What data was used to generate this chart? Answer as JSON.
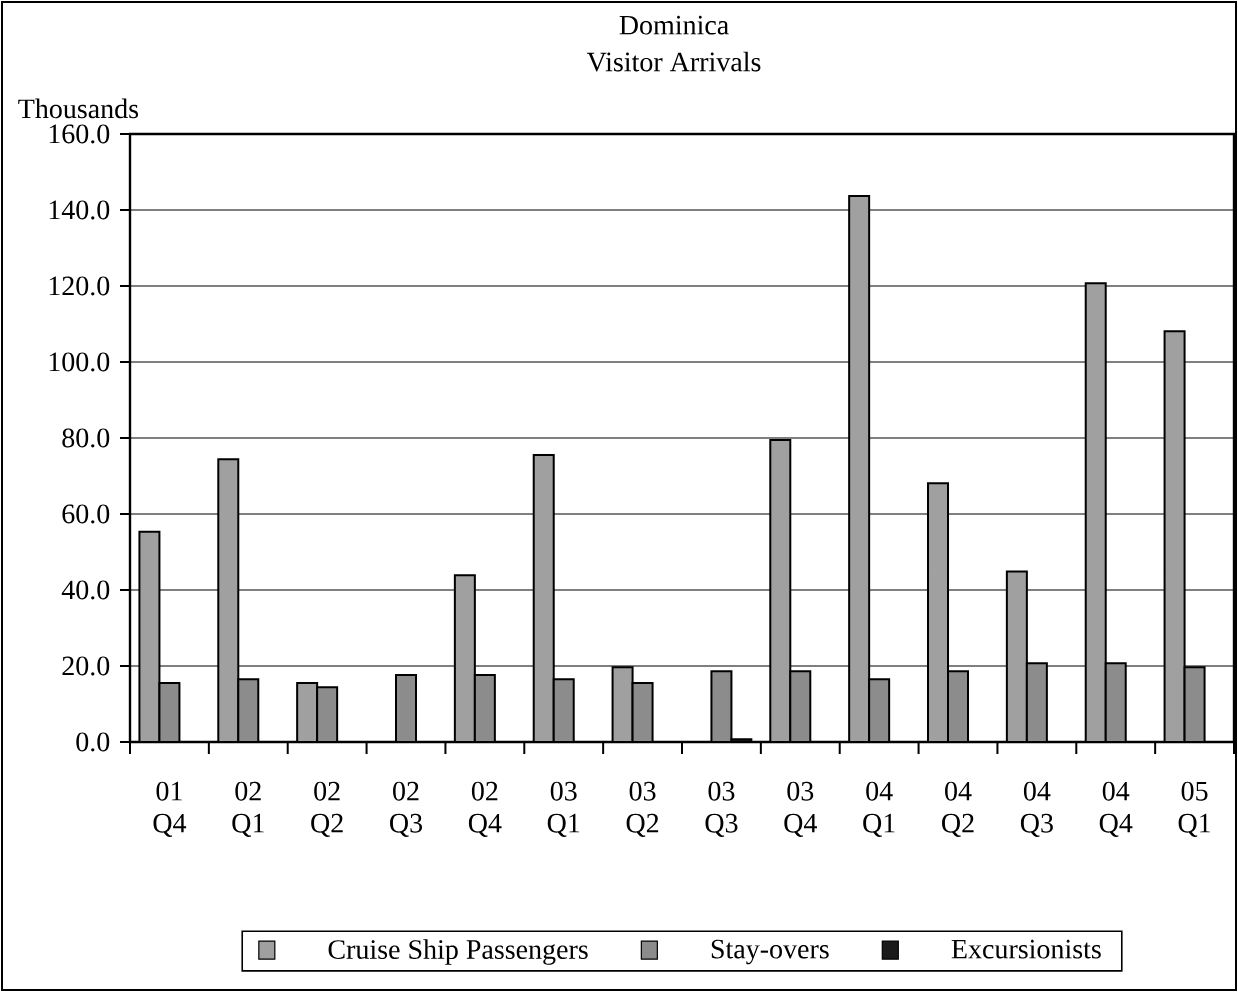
{
  "chart_data": {
    "type": "bar",
    "title": "Dominica",
    "subtitle": "Visitor Arrivals",
    "ylabel": "Thousands",
    "categories": [
      "01 Q4",
      "02 Q1",
      "02 Q2",
      "02 Q3",
      "02 Q4",
      "03 Q1",
      "03 Q2",
      "03 Q3",
      "03 Q4",
      "04 Q1",
      "04 Q2",
      "04 Q3",
      "04 Q4",
      "05 Q1"
    ],
    "series": [
      {
        "name": "Cruise Ship Passengers",
        "color": "#a0a0a0",
        "values": [
          55.3,
          74.4,
          15.5,
          null,
          43.9,
          75.5,
          19.7,
          null,
          79.5,
          143.7,
          68.1,
          44.9,
          120.7,
          108.1
        ]
      },
      {
        "name": "Stay-overs",
        "color": "#8c8c8c",
        "values": [
          15.5,
          16.5,
          14.4,
          17.6,
          17.6,
          16.5,
          15.5,
          18.6,
          18.6,
          16.5,
          18.6,
          20.7,
          20.7,
          19.7
        ]
      },
      {
        "name": "Excursionists",
        "color": "#1a1a1a",
        "values": [
          null,
          null,
          null,
          null,
          null,
          null,
          null,
          0.7,
          null,
          null,
          null,
          null,
          null,
          null
        ]
      }
    ],
    "ylim": [
      0,
      160
    ],
    "yticks": [
      {
        "value": 0,
        "label": "0.0"
      },
      {
        "value": 20,
        "label": "20.0"
      },
      {
        "value": 40,
        "label": "40.0"
      },
      {
        "value": 60,
        "label": "60.0"
      },
      {
        "value": 80,
        "label": "80.0"
      },
      {
        "value": 100,
        "label": "100.0"
      },
      {
        "value": 120,
        "label": "120.0"
      },
      {
        "value": 140,
        "label": "140.0"
      },
      {
        "value": 160,
        "label": "160.0"
      }
    ],
    "grid": "y",
    "legend": "bottom"
  }
}
